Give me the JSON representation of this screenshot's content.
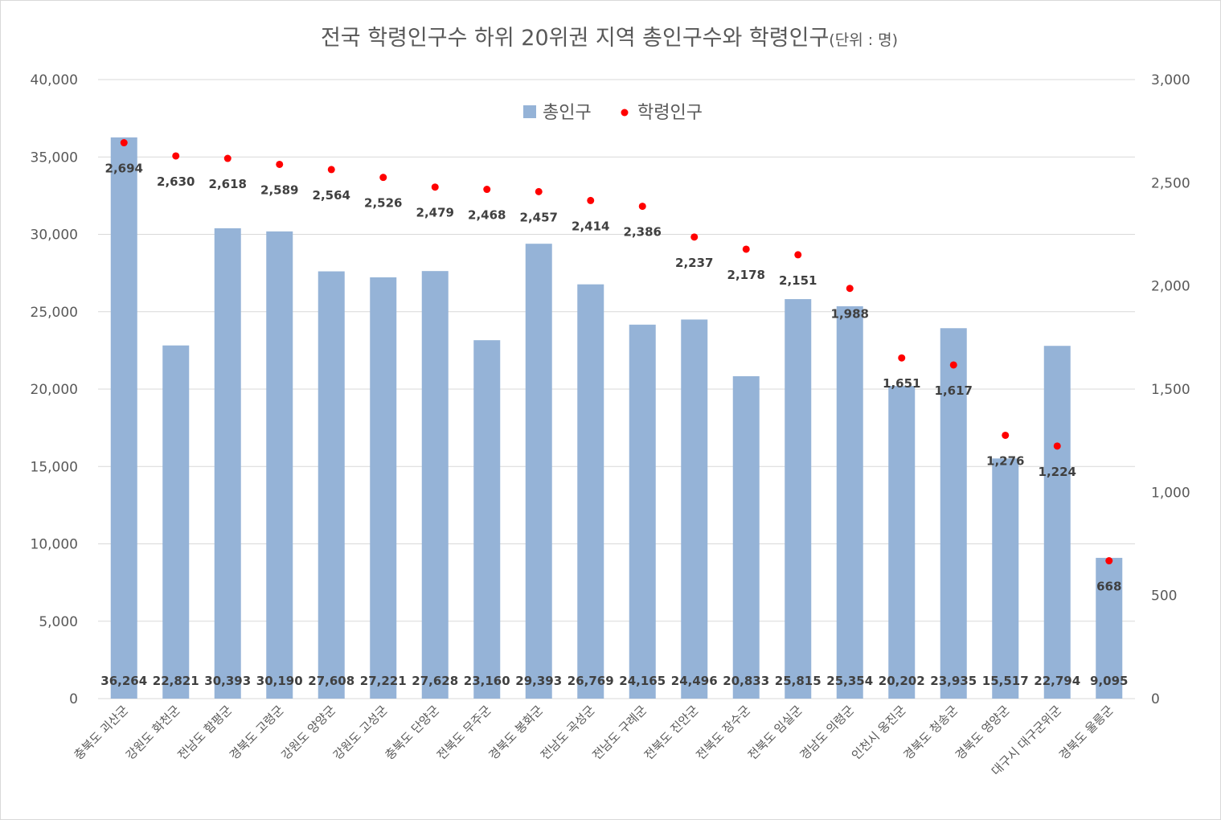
{
  "chart_data": {
    "type": "bar",
    "title": "전국 학령인구수 하위 20위권 지역 총인구수와 학령인구",
    "title_unit": "(단위 : 명)",
    "categories": [
      "충북도 괴산군",
      "강원도 화천군",
      "전남도 함평군",
      "경북도 고령군",
      "강원도 양양군",
      "강원도 고성군",
      "충북도 단양군",
      "전북도 무주군",
      "경북도 봉화군",
      "전남도 곡성군",
      "전남도 구례군",
      "전북도 진안군",
      "전북도 장수군",
      "전북도 임실군",
      "경남도 의령군",
      "인천시 옹진군",
      "경북도 청송군",
      "경북도 영양군",
      "대구시 대구군위군",
      "경북도 울릉군"
    ],
    "series": [
      {
        "name": "총인구",
        "type": "bar",
        "axis": "left",
        "color": "#95b3d7",
        "values": [
          36264,
          22821,
          30393,
          30190,
          27608,
          27221,
          27628,
          23160,
          29393,
          26769,
          24165,
          24496,
          20833,
          25815,
          25354,
          20202,
          23935,
          15517,
          22794,
          9095
        ],
        "labels": [
          "36,264",
          "22,821",
          "30,393",
          "30,190",
          "27,608",
          "27,221",
          "27,628",
          "23,160",
          "29,393",
          "26,769",
          "24,165",
          "24,496",
          "20,833",
          "25,815",
          "25,354",
          "20,202",
          "23,935",
          "15,517",
          "22,794",
          "9,095"
        ]
      },
      {
        "name": "학령인구",
        "type": "scatter",
        "axis": "right",
        "color": "#ff0000",
        "values": [
          2694,
          2630,
          2618,
          2589,
          2564,
          2526,
          2479,
          2468,
          2457,
          2414,
          2386,
          2237,
          2178,
          2151,
          1988,
          1651,
          1617,
          1276,
          1224,
          668
        ],
        "labels": [
          "2,694",
          "2,630",
          "2,618",
          "2,589",
          "2,564",
          "2,526",
          "2,479",
          "2,468",
          "2,457",
          "2,414",
          "2,386",
          "2,237",
          "2,178",
          "2,151",
          "1,988",
          "1,651",
          "1,617",
          "1,276",
          "1,224",
          "668"
        ]
      }
    ],
    "left_axis": {
      "ylim": [
        0,
        40000
      ],
      "ticks": [
        "0",
        "5,000",
        "10,000",
        "15,000",
        "20,000",
        "25,000",
        "30,000",
        "35,000",
        "40,000"
      ]
    },
    "right_axis": {
      "ylim": [
        0,
        3000
      ],
      "ticks": [
        "0",
        "500",
        "1,000",
        "1,500",
        "2,000",
        "2,500",
        "3,000"
      ]
    },
    "grid": true,
    "legend_position": "top-center"
  }
}
